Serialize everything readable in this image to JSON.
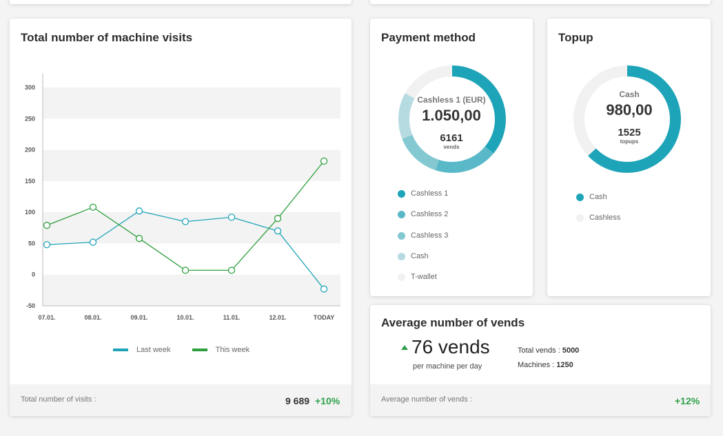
{
  "visits": {
    "title": "Total number of machine visits",
    "legend": [
      {
        "name": "Last week",
        "color": "#1ea4b8"
      },
      {
        "name": "This week",
        "color": "#2e9f3e"
      }
    ],
    "footer_label": "Total number of visits :",
    "footer_value": "9 689",
    "footer_pct": "+10%"
  },
  "chart_data": {
    "type": "line",
    "categories": [
      "07.01.",
      "08.01.",
      "09.01.",
      "10.01.",
      "11.01.",
      "12.01.",
      "TODAY"
    ],
    "yticks": [
      "300",
      "250",
      "200",
      "150",
      "100",
      "50",
      "0",
      "-50"
    ],
    "ylim": [
      -50,
      300
    ],
    "grid": "banded",
    "legend_position": "bottom",
    "series": [
      {
        "name": "Last week",
        "color": "#1ea4b8",
        "values": [
          48,
          52,
          102,
          85,
          92,
          70,
          -23
        ]
      },
      {
        "name": "This week",
        "color": "#2e9f3e",
        "values": [
          79,
          108,
          58,
          7,
          7,
          90,
          182
        ]
      }
    ]
  },
  "payment": {
    "title": "Payment method",
    "center_label": "Cashless 1 (EUR)",
    "center_value": "1.050,00",
    "center_count": "6161",
    "center_unit": "vends",
    "legend": [
      {
        "name": "Cashless 1",
        "color": "#1ea4b8"
      },
      {
        "name": "Cashless 2",
        "color": "#5ab9c8"
      },
      {
        "name": "Cashless 3",
        "color": "#84c8d2"
      },
      {
        "name": "Cash",
        "color": "#b6dbe1"
      },
      {
        "name": "T-wallet",
        "color": "#f1f1f1"
      }
    ],
    "segments": [
      {
        "name": "Cashless 1",
        "fraction": 0.36,
        "color": "#1ea4b8"
      },
      {
        "name": "Cashless 2",
        "fraction": 0.19,
        "color": "#5ab9c8"
      },
      {
        "name": "Cashless 3",
        "fraction": 0.14,
        "color": "#84c8d2"
      },
      {
        "name": "Cash",
        "fraction": 0.14,
        "color": "#b6dbe1"
      },
      {
        "name": "T-wallet",
        "fraction": 0.17,
        "color": "#f1f1f1"
      }
    ]
  },
  "topup": {
    "title": "Topup",
    "center_label": "Cash",
    "center_value": "980,00",
    "center_count": "1525",
    "center_unit": "topups",
    "legend": [
      {
        "name": "Cash",
        "color": "#1ea4b8"
      },
      {
        "name": "Cashless",
        "color": "#f1f1f1"
      }
    ],
    "segments": [
      {
        "name": "Cash",
        "fraction": 0.63,
        "color": "#1ea4b8"
      },
      {
        "name": "Cashless",
        "fraction": 0.37,
        "color": "#f1f1f1"
      }
    ]
  },
  "avg": {
    "title": "Average number of vends",
    "arrow_icon": "triangle-up-icon",
    "value": "76 vends",
    "subtitle": "per machine per day",
    "total_label": "Total vends : ",
    "total_value": "5000",
    "machines_label": "Machines : ",
    "machines_value": "1250",
    "footer_label": "Average number of vends :",
    "footer_pct": "+12%"
  },
  "colors": {
    "accent": "#1ea4b8",
    "green": "#2e9f3e",
    "positive": "#2e9f4a"
  }
}
